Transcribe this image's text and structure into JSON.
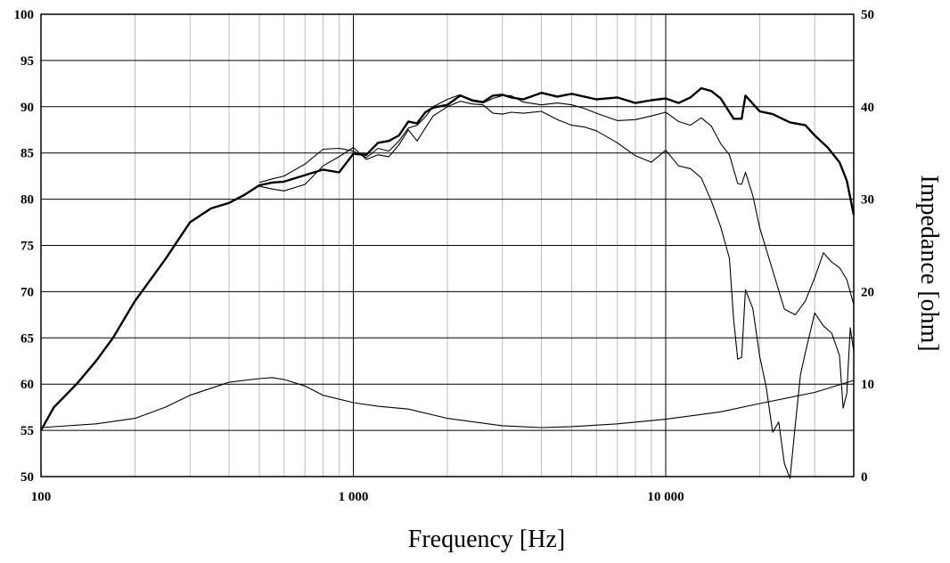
{
  "chart_data": {
    "type": "line",
    "title": "",
    "xlabel": "Frequency [Hz]",
    "ylabel_left": "",
    "ylabel_right": "Impedance [ohm]",
    "x_scale": "log",
    "xlim": [
      100,
      40000
    ],
    "ylim_left": [
      50,
      100
    ],
    "ylim_right": [
      0,
      50
    ],
    "grid": true,
    "legend": "none",
    "x_tick_labels": [
      {
        "value": 100,
        "label": "100"
      },
      {
        "value": 1000,
        "label": "1 000"
      },
      {
        "value": 10000,
        "label": "10 000"
      }
    ],
    "y_left_tick_labels": [
      "50",
      "55",
      "60",
      "65",
      "70",
      "75",
      "80",
      "85",
      "90",
      "95",
      "100"
    ],
    "y_right_tick_labels": [
      "0",
      "10",
      "20",
      "30",
      "40",
      "50"
    ],
    "series": [
      {
        "axis": "left",
        "style": "bold",
        "points": [
          [
            100,
            55
          ],
          [
            110,
            57.5
          ],
          [
            130,
            60
          ],
          [
            150,
            62.5
          ],
          [
            170,
            65
          ],
          [
            200,
            69
          ],
          [
            250,
            73.5
          ],
          [
            300,
            77.5
          ],
          [
            350,
            79
          ],
          [
            400,
            79.6
          ],
          [
            450,
            80.5
          ],
          [
            500,
            81.5
          ],
          [
            550,
            81.8
          ],
          [
            600,
            81.9
          ],
          [
            700,
            82.6
          ],
          [
            800,
            83.2
          ],
          [
            900,
            82.9
          ],
          [
            1000,
            84.9
          ],
          [
            1100,
            84.8
          ],
          [
            1200,
            86.1
          ],
          [
            1300,
            86.3
          ],
          [
            1400,
            86.9
          ],
          [
            1500,
            88.4
          ],
          [
            1600,
            88.2
          ],
          [
            1700,
            89.4
          ],
          [
            1800,
            89.9
          ],
          [
            2000,
            90.2
          ],
          [
            2200,
            91.2
          ],
          [
            2400,
            90.7
          ],
          [
            2600,
            90.5
          ],
          [
            2800,
            91.2
          ],
          [
            3000,
            91.3
          ],
          [
            3200,
            91
          ],
          [
            3500,
            90.8
          ],
          [
            4000,
            91.5
          ],
          [
            4500,
            91.1
          ],
          [
            5000,
            91.4
          ],
          [
            6000,
            90.8
          ],
          [
            7000,
            91
          ],
          [
            8000,
            90.4
          ],
          [
            9000,
            90.7
          ],
          [
            10000,
            90.9
          ],
          [
            11000,
            90.4
          ],
          [
            12000,
            91
          ],
          [
            13000,
            92
          ],
          [
            14000,
            91.7
          ],
          [
            15000,
            90.9
          ],
          [
            16500,
            88.7
          ],
          [
            17500,
            88.7
          ],
          [
            18000,
            91.2
          ],
          [
            20000,
            89.5
          ],
          [
            22000,
            89.2
          ],
          [
            25000,
            88.3
          ],
          [
            28000,
            88
          ],
          [
            30000,
            86.9
          ],
          [
            33000,
            85.6
          ],
          [
            36000,
            84
          ],
          [
            38000,
            82
          ],
          [
            40000,
            78.3
          ]
        ]
      },
      {
        "axis": "left",
        "style": "thin",
        "points": [
          [
            500,
            81.8
          ],
          [
            550,
            82.2
          ],
          [
            600,
            82.5
          ],
          [
            700,
            83.8
          ],
          [
            800,
            85.4
          ],
          [
            900,
            85.5
          ],
          [
            1000,
            85.2
          ],
          [
            1100,
            84.5
          ],
          [
            1200,
            85.5
          ],
          [
            1300,
            85.2
          ],
          [
            1400,
            86.3
          ],
          [
            1500,
            87.7
          ],
          [
            1600,
            88
          ],
          [
            1700,
            88.9
          ],
          [
            1800,
            90
          ],
          [
            2000,
            90.8
          ],
          [
            2200,
            91.3
          ],
          [
            2400,
            90.6
          ],
          [
            2600,
            90.4
          ],
          [
            2800,
            90.9
          ],
          [
            3000,
            91.2
          ],
          [
            3200,
            91.2
          ],
          [
            3500,
            90.5
          ],
          [
            4000,
            90.2
          ],
          [
            4500,
            90.4
          ],
          [
            5000,
            90.2
          ],
          [
            5500,
            89.8
          ],
          [
            6000,
            89.3
          ],
          [
            7000,
            88.5
          ],
          [
            8000,
            88.6
          ],
          [
            9000,
            89
          ],
          [
            10000,
            89.4
          ],
          [
            11000,
            88.4
          ],
          [
            12000,
            88
          ],
          [
            13000,
            88.8
          ],
          [
            14000,
            87.9
          ],
          [
            15000,
            86
          ],
          [
            16000,
            84.8
          ],
          [
            17000,
            81.7
          ],
          [
            17500,
            81.6
          ],
          [
            18000,
            82.9
          ],
          [
            19000,
            80.4
          ],
          [
            20000,
            76.9
          ],
          [
            22000,
            72.3
          ],
          [
            24000,
            68.1
          ],
          [
            26000,
            67.5
          ],
          [
            28000,
            69
          ],
          [
            30000,
            71.5
          ],
          [
            32000,
            74.2
          ],
          [
            34000,
            73.2
          ],
          [
            36000,
            72.6
          ],
          [
            38000,
            71.3
          ],
          [
            40000,
            68.6
          ]
        ]
      },
      {
        "axis": "left",
        "style": "thin",
        "points": [
          [
            500,
            81.4
          ],
          [
            550,
            81.1
          ],
          [
            600,
            80.9
          ],
          [
            700,
            81.6
          ],
          [
            800,
            83.6
          ],
          [
            900,
            84.6
          ],
          [
            1000,
            85.6
          ],
          [
            1100,
            84.3
          ],
          [
            1200,
            84.8
          ],
          [
            1300,
            84.6
          ],
          [
            1400,
            85.9
          ],
          [
            1500,
            87.5
          ],
          [
            1600,
            86.3
          ],
          [
            1700,
            87.7
          ],
          [
            1800,
            89
          ],
          [
            2000,
            90
          ],
          [
            2200,
            90.6
          ],
          [
            2400,
            90.3
          ],
          [
            2600,
            90.2
          ],
          [
            2800,
            89.3
          ],
          [
            3000,
            89.2
          ],
          [
            3200,
            89.4
          ],
          [
            3500,
            89.3
          ],
          [
            4000,
            89.5
          ],
          [
            4500,
            88.6
          ],
          [
            5000,
            88
          ],
          [
            5500,
            87.8
          ],
          [
            6000,
            87.4
          ],
          [
            7000,
            86.1
          ],
          [
            8000,
            84.7
          ],
          [
            9000,
            84
          ],
          [
            10000,
            85.3
          ],
          [
            11000,
            83.6
          ],
          [
            12000,
            83.3
          ],
          [
            13000,
            82.3
          ],
          [
            14000,
            79.8
          ],
          [
            15000,
            77
          ],
          [
            16000,
            73.6
          ],
          [
            16500,
            67
          ],
          [
            17000,
            62.7
          ],
          [
            17500,
            62.9
          ],
          [
            18000,
            70.2
          ],
          [
            19000,
            68.2
          ],
          [
            20000,
            63
          ],
          [
            21000,
            59.6
          ],
          [
            22000,
            54.8
          ],
          [
            23000,
            55.9
          ],
          [
            24000,
            51.4
          ],
          [
            25000,
            49.8
          ],
          [
            26000,
            55.6
          ],
          [
            27000,
            61
          ],
          [
            28000,
            63.4
          ],
          [
            30000,
            67.7
          ],
          [
            32000,
            66.3
          ],
          [
            34000,
            65.5
          ],
          [
            36000,
            63.1
          ],
          [
            37000,
            57.4
          ],
          [
            38000,
            59
          ],
          [
            39000,
            66.1
          ],
          [
            40000,
            63.5
          ]
        ]
      },
      {
        "axis": "right",
        "style": "thin",
        "points": [
          [
            100,
            5.3
          ],
          [
            150,
            5.7
          ],
          [
            200,
            6.3
          ],
          [
            250,
            7.5
          ],
          [
            300,
            8.8
          ],
          [
            400,
            10.2
          ],
          [
            500,
            10.6
          ],
          [
            550,
            10.7
          ],
          [
            600,
            10.5
          ],
          [
            700,
            9.8
          ],
          [
            800,
            8.8
          ],
          [
            1000,
            8
          ],
          [
            1200,
            7.6
          ],
          [
            1500,
            7.3
          ],
          [
            2000,
            6.3
          ],
          [
            3000,
            5.5
          ],
          [
            4000,
            5.3
          ],
          [
            5000,
            5.4
          ],
          [
            7000,
            5.7
          ],
          [
            10000,
            6.2
          ],
          [
            15000,
            7
          ],
          [
            20000,
            7.9
          ],
          [
            30000,
            9.1
          ],
          [
            40000,
            10.4
          ]
        ]
      }
    ]
  }
}
